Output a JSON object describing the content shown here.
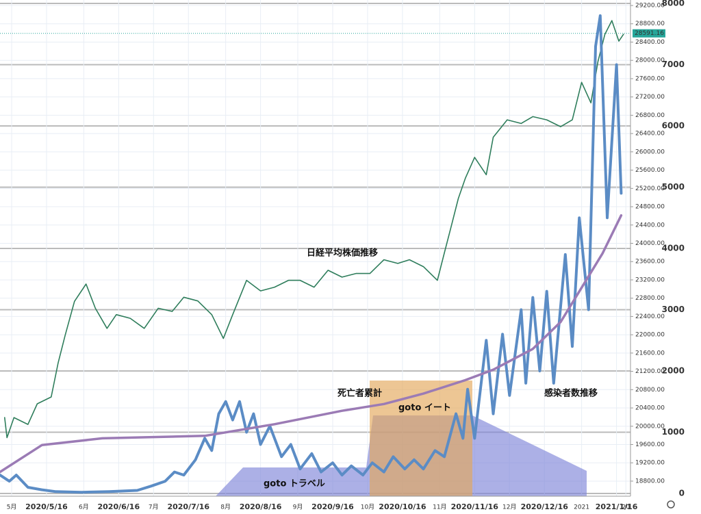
{
  "chart_data": {
    "type": "line",
    "xlim": [
      -5,
      266
    ],
    "ylim": [
      18470,
      29320
    ],
    "y2lim": [
      -45,
      8056
    ],
    "grid": true,
    "xticks": [
      {
        "value": 0,
        "label": "5月"
      },
      {
        "value": 15,
        "label": "2020/5/16"
      },
      {
        "value": 31,
        "label": "6月"
      },
      {
        "value": 46,
        "label": "2020/6/16"
      },
      {
        "value": 61,
        "label": "7月"
      },
      {
        "value": 76,
        "label": "2020/7/16"
      },
      {
        "value": 92,
        "label": "8月"
      },
      {
        "value": 107,
        "label": "2020/8/16"
      },
      {
        "value": 123,
        "label": "9月"
      },
      {
        "value": 138,
        "label": "2020/9/16"
      },
      {
        "value": 153,
        "label": "10月"
      },
      {
        "value": 168,
        "label": "2020/10/16"
      },
      {
        "value": 184,
        "label": "11月"
      },
      {
        "value": 199,
        "label": "2020/11/16"
      },
      {
        "value": 214,
        "label": "12月"
      },
      {
        "value": 229,
        "label": "2020/12/16"
      },
      {
        "value": 245,
        "label": "2021"
      },
      {
        "value": 260,
        "label": "2021/1/16"
      },
      {
        "value": 264,
        "label": "20"
      }
    ],
    "yticks": [
      {
        "value": 18800,
        "label": "18800.00"
      },
      {
        "value": 19200,
        "label": "19200.00"
      },
      {
        "value": 19600,
        "label": "19600.00"
      },
      {
        "value": 20000,
        "label": "20000.00"
      },
      {
        "value": 20400,
        "label": "20400.00"
      },
      {
        "value": 20800,
        "label": "20800.00"
      },
      {
        "value": 21200,
        "label": "21200.00"
      },
      {
        "value": 21600,
        "label": "21600.00"
      },
      {
        "value": 22000,
        "label": "22000.00"
      },
      {
        "value": 22400,
        "label": "22400.00"
      },
      {
        "value": 22800,
        "label": "22800.00"
      },
      {
        "value": 23200,
        "label": "23200.00"
      },
      {
        "value": 23600,
        "label": "23600.00"
      },
      {
        "value": 24000,
        "label": "24000.00"
      },
      {
        "value": 24400,
        "label": "24400.00"
      },
      {
        "value": 24800,
        "label": "24800.00"
      },
      {
        "value": 25200,
        "label": "25200.00"
      },
      {
        "value": 25600,
        "label": "25600.00"
      },
      {
        "value": 26000,
        "label": "26000.00"
      },
      {
        "value": 26400,
        "label": "26400.00"
      },
      {
        "value": 26800,
        "label": "26800.00"
      },
      {
        "value": 27200,
        "label": "27200.00"
      },
      {
        "value": 27600,
        "label": "27600.00"
      },
      {
        "value": 28000,
        "label": "28000.00"
      },
      {
        "value": 28400,
        "label": "28400.00"
      },
      {
        "value": 28800,
        "label": "28800.00"
      },
      {
        "value": 29200,
        "label": "29200.00"
      }
    ],
    "y2ticks": [
      0,
      1000,
      2000,
      3000,
      4000,
      5000,
      6000,
      7000,
      8000
    ],
    "last_price": {
      "value": 28591.16,
      "label": "28591.16"
    },
    "annotations": [
      "日経平均株価推移",
      "死亡者累計",
      "goto イート",
      "goto トラベル",
      "感染者数推移"
    ],
    "series": [
      {
        "name": "日経平均株価推移",
        "color": "#2e7d5b",
        "axis": "y",
        "x": [
          -3,
          -2,
          1,
          7,
          11,
          17,
          20,
          23,
          27,
          32,
          36,
          41,
          45,
          51,
          57,
          63,
          69,
          74,
          80,
          86,
          91,
          95,
          101,
          107,
          113,
          119,
          124,
          130,
          136,
          142,
          148,
          154,
          160,
          166,
          171,
          177,
          183,
          186,
          189,
          192,
          195,
          199,
          204,
          207,
          213,
          219,
          224,
          230,
          236,
          241,
          245,
          249,
          252,
          255,
          258,
          261,
          263
        ],
        "values": [
          20190,
          19750,
          20190,
          20040,
          20490,
          20640,
          21390,
          21990,
          22730,
          23110,
          22580,
          22140,
          22440,
          22360,
          22140,
          22580,
          22510,
          22820,
          22740,
          22440,
          21920,
          22440,
          23190,
          22960,
          23040,
          23190,
          23190,
          23040,
          23410,
          23260,
          23340,
          23340,
          23640,
          23560,
          23640,
          23490,
          23190,
          23790,
          24380,
          24980,
          25420,
          25880,
          25500,
          26320,
          26700,
          26620,
          26770,
          26700,
          26550,
          26700,
          27520,
          27070,
          27970,
          28570,
          28870,
          28420,
          28570
        ]
      },
      {
        "name": "感染者数推移",
        "color": "#5b8cc5",
        "axis": "y2",
        "x": [
          -5,
          -1,
          2,
          7,
          13,
          19,
          30,
          42,
          54,
          60,
          66,
          70,
          74,
          79,
          83,
          86,
          89,
          92,
          95,
          98,
          101,
          104,
          107,
          111,
          116,
          120,
          124,
          129,
          133,
          138,
          142,
          146,
          151,
          155,
          160,
          164,
          169,
          173,
          177,
          182,
          186,
          191,
          194,
          196,
          199,
          204,
          207,
          211,
          214,
          219,
          221,
          224,
          227,
          230,
          233,
          238,
          241,
          244,
          248,
          251,
          253,
          256,
          260,
          262
        ],
        "values": [
          300,
          200,
          300,
          100,
          60,
          30,
          20,
          30,
          50,
          120,
          200,
          350,
          300,
          550,
          900,
          700,
          1300,
          1500,
          1200,
          1500,
          1000,
          1300,
          800,
          1100,
          600,
          800,
          400,
          650,
          350,
          500,
          300,
          450,
          300,
          500,
          350,
          600,
          400,
          550,
          400,
          700,
          600,
          1300,
          900,
          1700,
          900,
          2500,
          1300,
          2600,
          1600,
          3000,
          1800,
          3200,
          2000,
          3300,
          1800,
          3900,
          2400,
          4500,
          3000,
          7300,
          7800,
          4500,
          7000,
          4900
        ]
      },
      {
        "name": "死亡者累計",
        "color": "#9b7bb5",
        "axis": "y2",
        "x": [
          -5,
          13,
          39,
          83,
          113,
          142,
          160,
          177,
          195,
          207,
          224,
          236,
          245,
          254,
          262
        ],
        "values": [
          350,
          790,
          900,
          940,
          1130,
          1350,
          1460,
          1630,
          1850,
          2020,
          2360,
          2800,
          3360,
          3920,
          4540
        ]
      }
    ]
  }
}
